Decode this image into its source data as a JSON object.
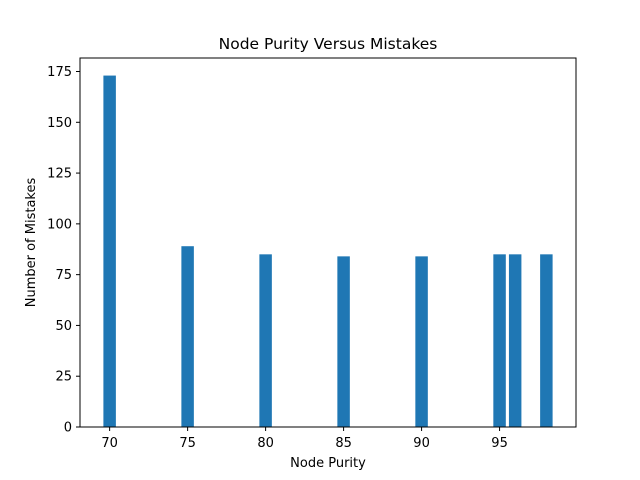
{
  "chart_data": {
    "type": "bar",
    "title": "Node Purity Versus Mistakes",
    "xlabel": "Node Purity",
    "ylabel": "Number of Mistakes",
    "x": [
      70,
      75,
      80,
      85,
      90,
      95,
      96,
      98
    ],
    "values": [
      173,
      89,
      85,
      84,
      84,
      85,
      85,
      85
    ],
    "bar_width": 0.8,
    "xlim": [
      68.1,
      99.9
    ],
    "ylim": [
      0,
      181.65
    ],
    "xticks": [
      70,
      75,
      80,
      85,
      90,
      95
    ],
    "xtick_labels": [
      "70",
      "75",
      "80",
      "85",
      "90",
      "95"
    ],
    "yticks": [
      0,
      25,
      50,
      75,
      100,
      125,
      150,
      175
    ],
    "ytick_labels": [
      "0",
      "25",
      "50",
      "75",
      "100",
      "125",
      "150",
      "175"
    ],
    "grid": false,
    "legend": "none",
    "colors": {
      "bar": "#1f77b4",
      "axis": "#000000",
      "background": "#ffffff"
    }
  }
}
